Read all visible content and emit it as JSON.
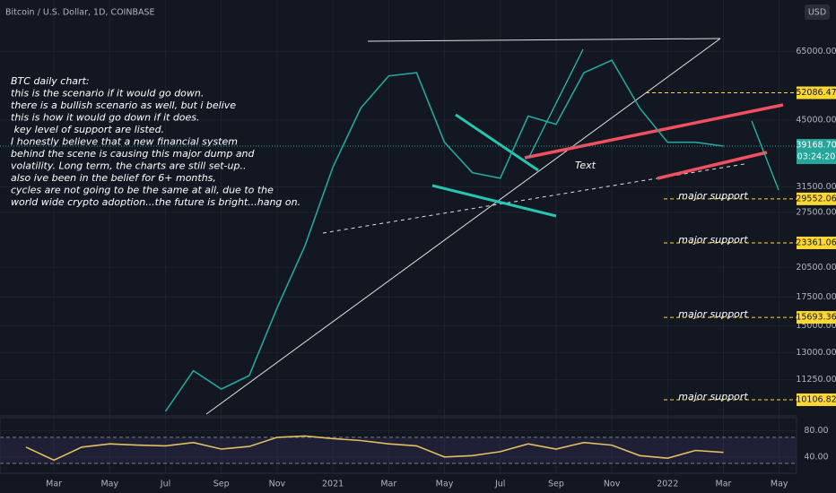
{
  "header": {
    "title": "Bitcoin / U.S. Dollar, 1D, COINBASE",
    "currency": "USD"
  },
  "note": [
    "BTC daily chart:",
    "this is the scenario if it would go down.",
    "there is a bullish scenario as well, but i belive",
    "this is how it would go down if it does.",
    "",
    " key level of support are listed.",
    "I honestly believe that a new financial system",
    "behind the scene is causing this major dump and",
    "volatility. Long term, the charts are still set-up..",
    "also ive been in the belief for 6+ months,",
    "cycles are not going to be the same at all, due to the",
    "world wide crypto adoption...the future is bright...hang on."
  ],
  "annotation": "Text",
  "chart_data": [
    {
      "type": "line",
      "log_scale": true,
      "color": "#26a69a",
      "categories": [
        null,
        "Mar",
        null,
        "May",
        null,
        "Jul",
        null,
        "Sep",
        null,
        "Nov",
        null,
        "2021",
        null,
        "Mar",
        null,
        "May",
        null,
        "Jul",
        null,
        "Sep",
        null,
        "Nov",
        null,
        "2022",
        null,
        "Mar",
        null,
        "May"
      ],
      "values": [
        null,
        null,
        null,
        null,
        null,
        9500,
        11800,
        10700,
        11500,
        16500,
        23000,
        35000,
        48000,
        57000,
        58000,
        40000,
        34000,
        33000,
        46000,
        44000,
        58000,
        62000,
        48000,
        40000,
        40000,
        39168.7,
        null,
        null
      ],
      "ylim": [
        9360,
        85500
      ],
      "yticks": [
        {
          "value": 65000,
          "label": "65000.00"
        },
        {
          "value": 45000,
          "label": "45000.00"
        },
        {
          "value": 31500,
          "label": "31500.00"
        },
        {
          "value": 27500,
          "label": "27500.00"
        },
        {
          "value": 20500,
          "label": "20500.00"
        },
        {
          "value": 17500,
          "label": "17500.00"
        },
        {
          "value": 15000,
          "label": "15000.00"
        },
        {
          "value": 13000,
          "label": "13000.00"
        },
        {
          "value": 11250,
          "label": "11250.00"
        }
      ],
      "levels": [
        {
          "value": 52086.47
        },
        {
          "value": 29552.06,
          "text": "major support"
        },
        {
          "value": 23361.06,
          "text": "major support"
        },
        {
          "value": 15693.36,
          "text": "major support"
        },
        {
          "value": 10106.82,
          "text": "major support"
        }
      ],
      "last": {
        "value": 39168.7,
        "label": "39168.70"
      },
      "countdown": "03:24:20"
    },
    {
      "type": "line",
      "color": "#e0c060",
      "values": [
        55,
        35,
        55,
        60,
        58,
        57,
        62,
        52,
        56,
        70,
        72,
        68,
        65,
        60,
        57,
        40,
        42,
        48,
        60,
        52,
        62,
        58,
        42,
        38,
        50,
        47,
        null,
        null
      ],
      "ylim": [
        15,
        100
      ],
      "yticks": [
        {
          "value": 80,
          "label": "80.00"
        },
        {
          "value": 40,
          "label": "40.00"
        }
      ],
      "bands": [
        30,
        70
      ]
    }
  ]
}
